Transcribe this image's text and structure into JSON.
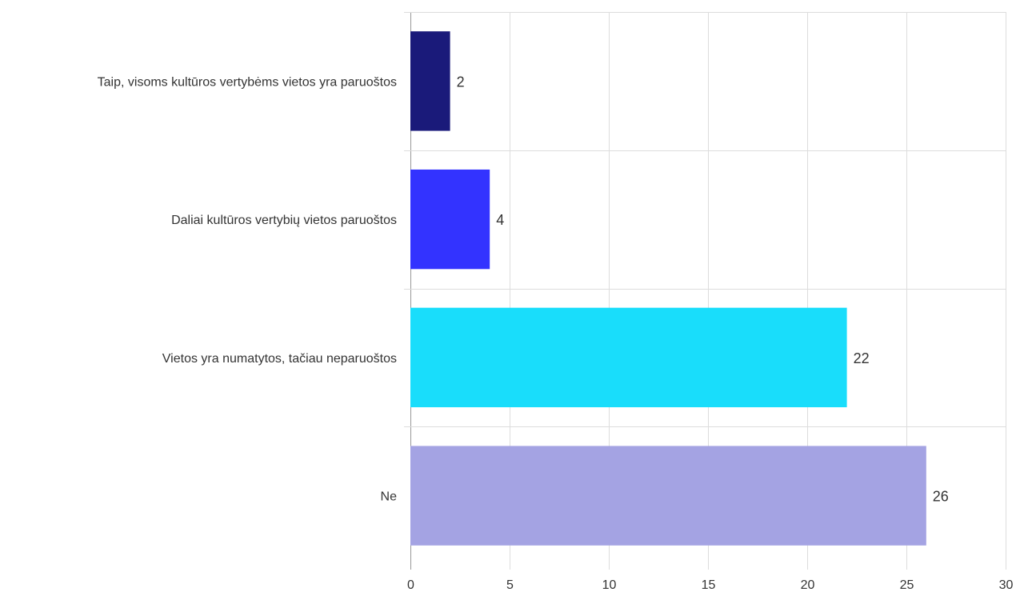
{
  "chart_data": {
    "type": "bar",
    "orientation": "horizontal",
    "categories": [
      "Taip, visoms kultūros vertybėms vietos yra paruoštos",
      "Daliai kultūros vertybių vietos paruoštos",
      "Vietos yra numatytos, tačiau neparuoštos",
      "Ne"
    ],
    "values": [
      2,
      4,
      22,
      26
    ],
    "colors": [
      "#1a1a7a",
      "#3333ff",
      "#19ddfb",
      "#a4a3e3"
    ],
    "xlim": [
      0,
      30
    ],
    "xticks": [
      0,
      5,
      10,
      15,
      20,
      25,
      30
    ],
    "grid": true,
    "data_labels": true,
    "title": "",
    "xlabel": "",
    "ylabel": ""
  }
}
